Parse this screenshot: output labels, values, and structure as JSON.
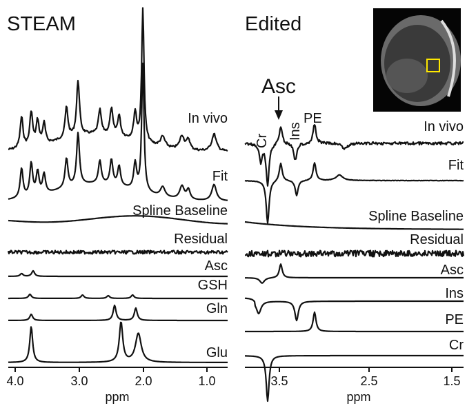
{
  "panels": [
    {
      "title": "STEAM",
      "traces": [
        "In vivo",
        "Fit",
        "Spline Baseline",
        "Residual",
        "Asc",
        "GSH",
        "Gln",
        "Glu"
      ],
      "axis": {
        "ticks": [
          "4.0",
          "3.0",
          "2.0",
          "1.0"
        ],
        "label": "ppm"
      }
    },
    {
      "title": "Edited",
      "annotations": [
        "Asc",
        "Cr",
        "Ins",
        "PE"
      ],
      "traces": [
        "In vivo",
        "Fit",
        "Spline Baseline",
        "Residual",
        "Asc",
        "Ins",
        "PE",
        "Cr"
      ],
      "axis": {
        "ticks": [
          "3.5",
          "2.5",
          "1.5"
        ],
        "label": "ppm"
      }
    }
  ]
}
